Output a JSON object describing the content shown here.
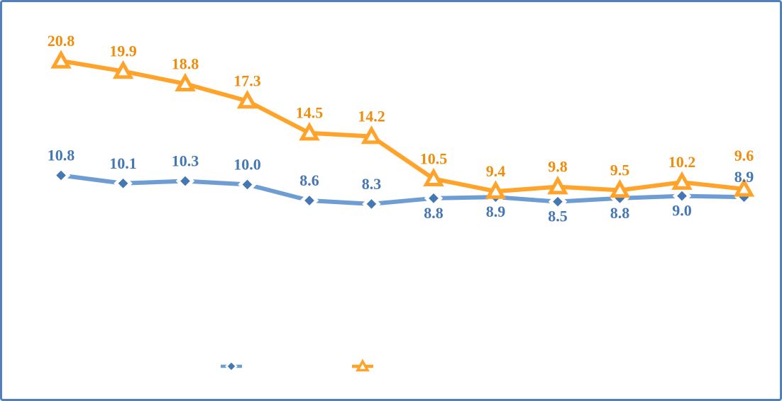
{
  "frame": {
    "border_color": "#4E81BD",
    "background_color": "#FFFFFF"
  },
  "chart_data": {
    "type": "line",
    "title": "",
    "xlabel": "",
    "ylabel": "",
    "grid": false,
    "axes_visible": false,
    "n_points": 12,
    "categories": [
      "",
      "",
      "",
      "",
      "",
      "",
      "",
      "",
      "",
      "",
      "",
      ""
    ],
    "ylim": [
      7.5,
      21.5
    ],
    "series": [
      {
        "name": "series-1-diamond",
        "marker": "diamond",
        "line_color": "#6E9DD3",
        "marker_color": "#4577B4",
        "label_color": "#4577B4",
        "values": [
          10.8,
          10.1,
          10.3,
          10.0,
          8.6,
          8.3,
          8.8,
          8.9,
          8.5,
          8.8,
          9.0,
          8.9
        ],
        "labels": [
          "10.8",
          "10.1",
          "10.3",
          "10.0",
          "8.6",
          "8.3",
          "8.8",
          "8.9",
          "8.5",
          "8.8",
          "9.0",
          "8.9"
        ],
        "label_position": [
          "above",
          "above",
          "above",
          "above",
          "above",
          "above",
          "below",
          "below",
          "below",
          "below",
          "below",
          "above"
        ]
      },
      {
        "name": "series-2-triangle",
        "marker": "triangle",
        "line_color": "#FFA32B",
        "marker_color": "#FFA32B",
        "label_color": "#EE8D0C",
        "values": [
          20.8,
          19.9,
          18.8,
          17.3,
          14.5,
          14.2,
          10.5,
          9.4,
          9.8,
          9.5,
          10.2,
          9.6
        ],
        "labels": [
          "20.8",
          "19.9",
          "18.8",
          "17.3",
          "14.5",
          "14.2",
          "10.5",
          "9.4",
          "9.8",
          "9.5",
          "10.2",
          "9.6"
        ],
        "label_position": [
          "above",
          "above",
          "above",
          "above",
          "above",
          "above",
          "above",
          "above",
          "above",
          "above",
          "above",
          "above-high"
        ]
      }
    ],
    "legend": {
      "position": "bottom",
      "items": [
        {
          "marker": "diamond",
          "label": ""
        },
        {
          "marker": "triangle",
          "label": ""
        }
      ]
    }
  }
}
